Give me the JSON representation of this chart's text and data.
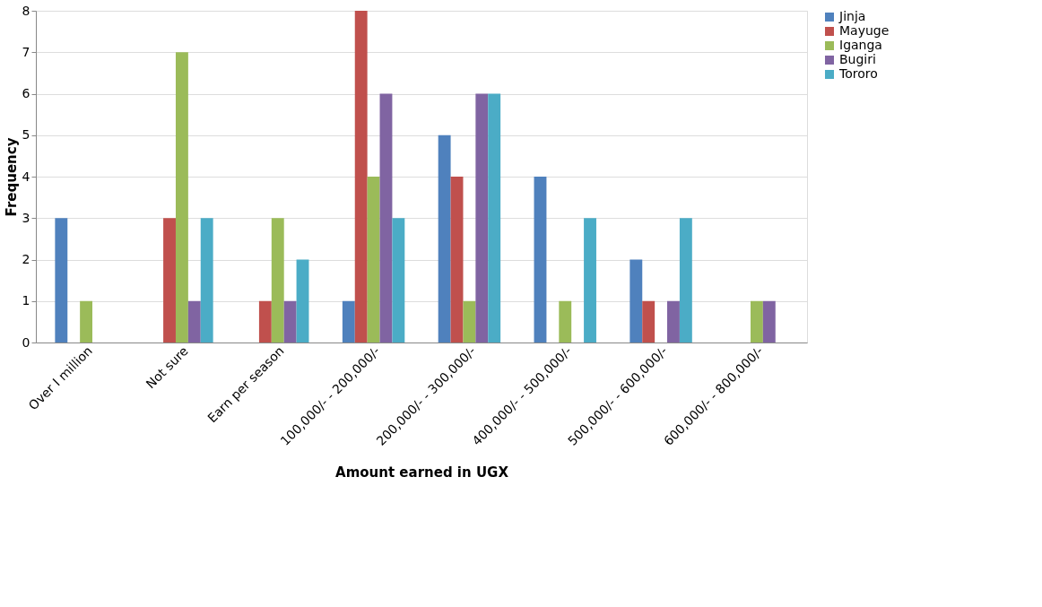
{
  "chart_data": {
    "type": "bar",
    "xlabel": "Amount earned in UGX",
    "ylabel": "Frequency",
    "categories": [
      "Over I million",
      "Not sure",
      "Earn per season",
      "100,000/- - 200,000/-",
      "200,000/- - 300,000/-",
      "400,000/- - 500,000/-",
      "500,000/- - 600,000/-",
      "600,000/- - 800,000/-"
    ],
    "series": [
      {
        "name": "Jinja",
        "color": "#4f81bd",
        "values": [
          3,
          0,
          0,
          1,
          5,
          4,
          2,
          0
        ]
      },
      {
        "name": "Mayuge",
        "color": "#c0504d",
        "values": [
          0,
          3,
          1,
          8,
          4,
          0,
          1,
          0
        ]
      },
      {
        "name": "Iganga",
        "color": "#9bbb59",
        "values": [
          1,
          7,
          3,
          4,
          1,
          1,
          0,
          1
        ]
      },
      {
        "name": "Bugiri",
        "color": "#8064a2",
        "values": [
          0,
          1,
          1,
          6,
          6,
          0,
          1,
          1
        ]
      },
      {
        "name": "Tororo",
        "color": "#4bacc6",
        "values": [
          0,
          3,
          2,
          3,
          6,
          3,
          3,
          0
        ]
      }
    ],
    "ylim": [
      0,
      8
    ],
    "yticks": [
      0,
      1,
      2,
      3,
      4,
      5,
      6,
      7,
      8
    ],
    "grid": "y",
    "legend": "right"
  }
}
